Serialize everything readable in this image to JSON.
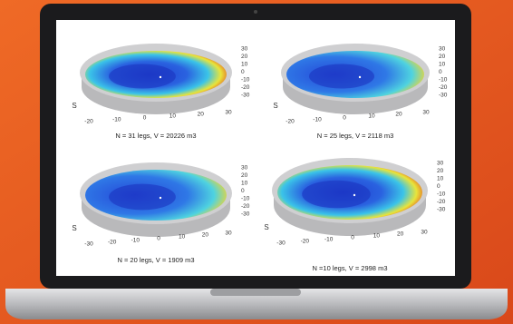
{
  "panels": [
    {
      "caption": "N = 31 legs, V = 20226 m3",
      "y_label": "S",
      "x_ticks": [
        "-20",
        "-10",
        "0",
        "10",
        "20",
        "30"
      ],
      "z_ticks": [
        "30",
        "20",
        "10",
        "0",
        "-10",
        "-20",
        "-30"
      ]
    },
    {
      "caption": "N = 25 legs, V = 2118 m3",
      "y_label": "S",
      "x_ticks": [
        "-20",
        "-10",
        "0",
        "10",
        "20",
        "30"
      ],
      "z_ticks": [
        "30",
        "20",
        "10",
        "0",
        "-10",
        "-20",
        "-30"
      ]
    },
    {
      "caption": "N = 20 legs, V = 1909 m3",
      "y_label": "S",
      "x_ticks": [
        "-30",
        "-20",
        "-10",
        "0",
        "10",
        "20",
        "30"
      ],
      "z_ticks": [
        "30",
        "20",
        "10",
        "0",
        "-10",
        "-20",
        "-30"
      ]
    },
    {
      "caption": "N =10 legs,   V = 2998 m3",
      "y_label": "S",
      "x_ticks": [
        "-30",
        "-20",
        "-10",
        "0",
        "10",
        "20",
        "30"
      ],
      "z_ticks": [
        "30",
        "20",
        "10",
        "0",
        "-10",
        "-20",
        "-30"
      ]
    }
  ]
}
